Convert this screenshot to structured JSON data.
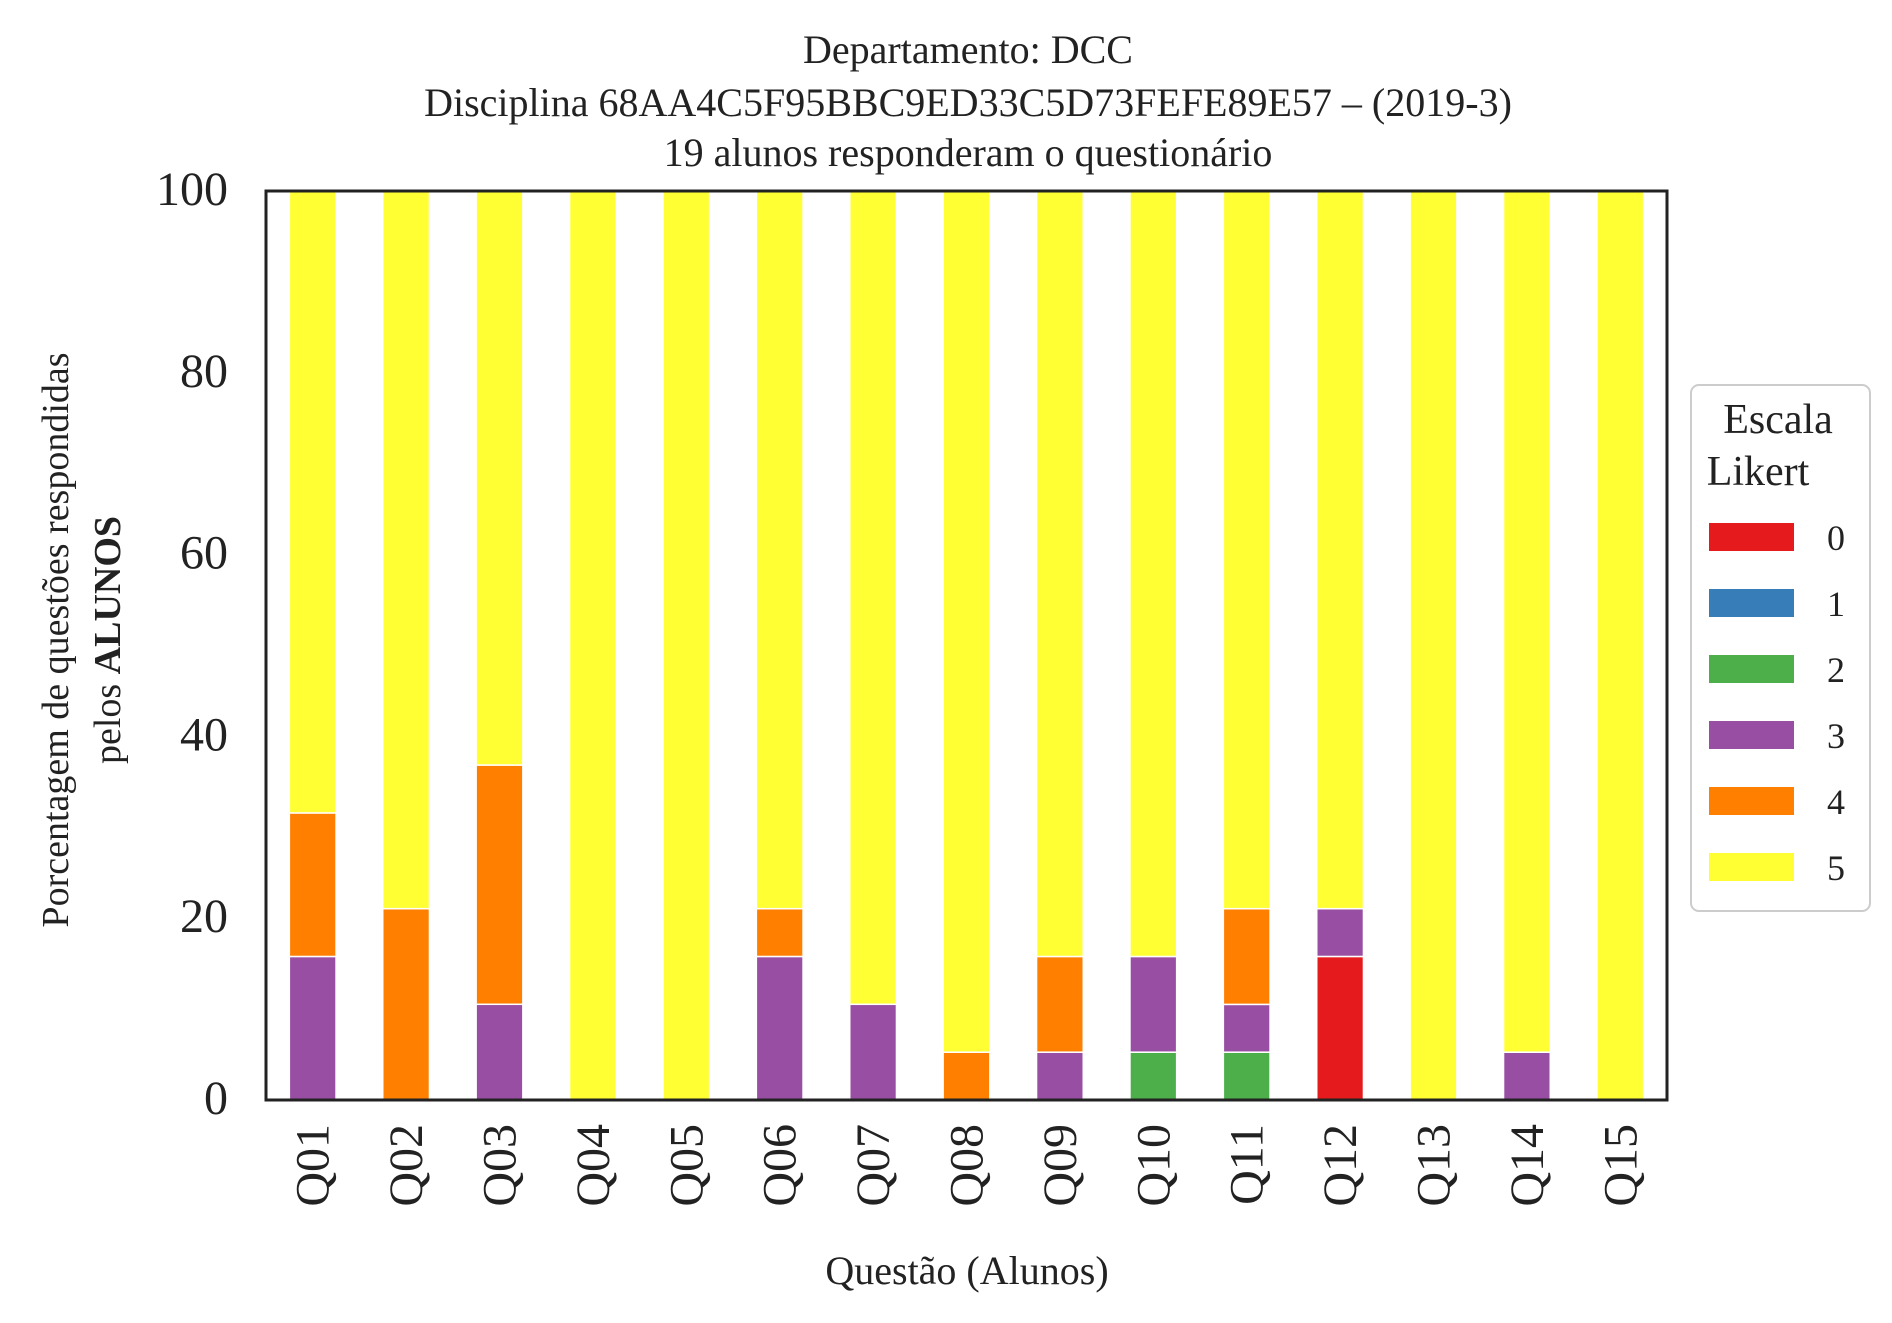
{
  "chart_data": {
    "type": "bar",
    "stacked": true,
    "title": {
      "line1": "Departamento: DCC",
      "line2": "Disciplina 68AA4C5F95BBC9ED33C5D73FEFE89E57 – (2019-3)",
      "line3": "19 alunos responderam o questionário"
    },
    "xlabel": "Questão (Alunos)",
    "ylabel": {
      "line1": "Porcentagem de questões respondidas",
      "line2_prefix": "pelos ",
      "line2_bold": "ALUNOS"
    },
    "ylim": [
      0,
      100
    ],
    "yticks": [
      "0",
      "20",
      "40",
      "60",
      "80",
      "100"
    ],
    "grid": false,
    "legend": {
      "title_line1": "Escala",
      "title_line2": "Likert",
      "placement": "right-center"
    },
    "categories": [
      "Q01",
      "Q02",
      "Q03",
      "Q04",
      "Q05",
      "Q06",
      "Q07",
      "Q08",
      "Q09",
      "Q10",
      "Q11",
      "Q12",
      "Q13",
      "Q14",
      "Q15"
    ],
    "series": [
      {
        "name": "0",
        "color": "#e41a1c",
        "values": [
          0,
          0,
          0,
          0,
          0,
          0,
          0,
          0,
          0,
          0,
          0,
          15.79,
          0,
          0,
          0
        ]
      },
      {
        "name": "1",
        "color": "#377eb8",
        "values": [
          0,
          0,
          0,
          0,
          0,
          0,
          0,
          0,
          0,
          0,
          0,
          0,
          0,
          0,
          0
        ]
      },
      {
        "name": "2",
        "color": "#4daf4a",
        "values": [
          0,
          0,
          0,
          0,
          0,
          0,
          0,
          0,
          0,
          5.26,
          5.26,
          0,
          0,
          0,
          0
        ]
      },
      {
        "name": "3",
        "color": "#984ea3",
        "values": [
          15.79,
          0,
          10.53,
          0,
          0,
          15.79,
          10.53,
          0,
          5.26,
          10.53,
          5.26,
          5.26,
          0,
          5.26,
          0
        ]
      },
      {
        "name": "4",
        "color": "#ff7f00",
        "values": [
          15.79,
          21.05,
          26.32,
          0,
          0,
          5.26,
          0,
          5.26,
          10.53,
          0,
          10.53,
          0,
          0,
          0,
          0
        ]
      },
      {
        "name": "5",
        "color": "#ffff33",
        "values": [
          68.42,
          78.95,
          63.16,
          100,
          100,
          78.95,
          89.47,
          94.74,
          84.21,
          84.21,
          78.95,
          78.95,
          100,
          94.74,
          100
        ]
      }
    ]
  }
}
